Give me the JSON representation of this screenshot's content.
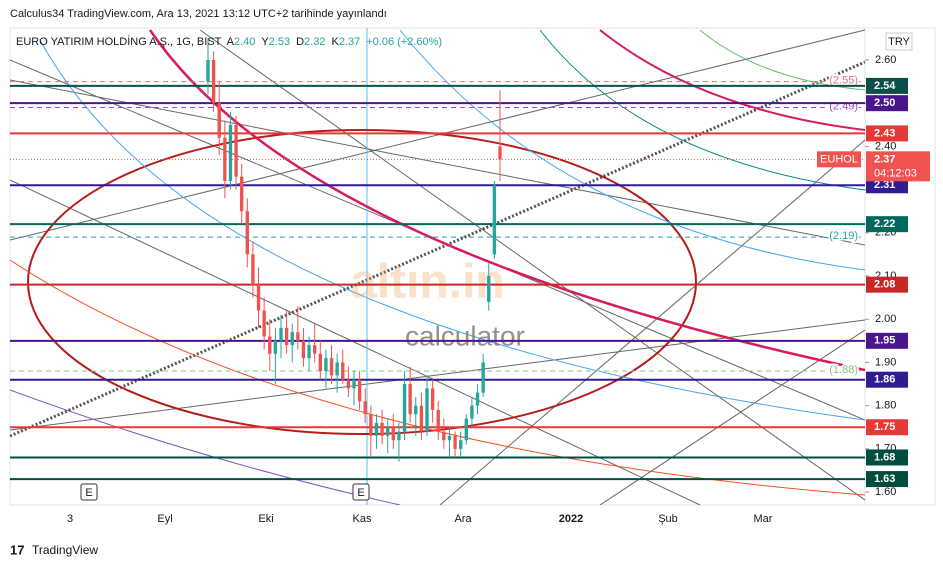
{
  "header": {
    "publisher": "Calculus34 TradingView.com, Ara 13, 2021 13:12 UTC+2 tarihinde yayınlandı",
    "footer": "TradingView"
  },
  "chart_data": {
    "type": "candlestick",
    "title": "EURO YATIRIM HOLDİNG A.Ş., 1G, BIST",
    "ohlc_text": [
      "A",
      "2.40",
      "Y",
      "2.53",
      "D",
      "2.32",
      "K",
      "2.37",
      "+0.06 (+2.60%)"
    ],
    "currency": "TRY",
    "time_labels": [
      "3",
      "Eyl",
      "Eki",
      "Kas",
      "Ara",
      "2022",
      "Şub",
      "Mar"
    ],
    "events": [
      "E",
      "E"
    ],
    "watermark": [
      "altın.in",
      "calculator"
    ],
    "open": [
      2.55,
      2.6,
      2.5,
      2.42,
      2.32,
      2.45,
      2.33,
      2.25,
      2.15,
      2.08,
      2.02,
      1.96,
      1.92,
      1.95,
      1.98,
      1.94,
      1.97,
      1.95,
      1.91,
      1.94,
      1.92,
      1.88,
      1.91,
      1.87,
      1.9,
      1.86,
      1.84,
      1.86,
      1.81,
      1.78,
      1.73,
      1.76,
      1.73,
      1.75,
      1.72,
      1.74,
      1.85,
      1.78,
      1.8,
      1.74,
      1.84,
      1.79,
      1.74,
      1.72,
      1.73,
      1.7,
      1.72,
      1.77,
      1.8,
      1.83,
      2.04,
      2.15,
      2.4
    ],
    "high": [
      2.65,
      2.62,
      2.55,
      2.46,
      2.48,
      2.47,
      2.36,
      2.28,
      2.18,
      2.12,
      2.05,
      2.0,
      1.98,
      2.01,
      2.02,
      1.99,
      2.03,
      1.98,
      1.96,
      1.99,
      1.95,
      1.93,
      1.94,
      1.92,
      1.93,
      1.89,
      1.88,
      1.88,
      1.84,
      1.8,
      1.78,
      1.79,
      1.77,
      1.78,
      1.76,
      1.88,
      1.89,
      1.82,
      1.83,
      1.87,
      1.86,
      1.81,
      1.77,
      1.75,
      1.74,
      1.74,
      1.78,
      1.82,
      1.85,
      1.92,
      2.13,
      2.32,
      2.53
    ],
    "low": [
      2.52,
      2.48,
      2.38,
      2.28,
      2.3,
      2.3,
      2.22,
      2.12,
      2.05,
      1.98,
      1.93,
      1.88,
      1.85,
      1.91,
      1.92,
      1.9,
      1.93,
      1.89,
      1.88,
      1.9,
      1.86,
      1.84,
      1.85,
      1.83,
      1.85,
      1.82,
      1.8,
      1.79,
      1.76,
      1.68,
      1.7,
      1.71,
      1.69,
      1.7,
      1.67,
      1.72,
      1.76,
      1.73,
      1.72,
      1.73,
      1.76,
      1.72,
      1.7,
      1.68,
      1.68,
      1.68,
      1.71,
      1.75,
      1.78,
      1.82,
      2.02,
      2.14,
      2.32
    ],
    "close": [
      2.6,
      2.5,
      2.42,
      2.32,
      2.45,
      2.33,
      2.25,
      2.15,
      2.08,
      2.02,
      1.96,
      1.92,
      1.95,
      1.98,
      1.94,
      1.97,
      1.95,
      1.91,
      1.94,
      1.92,
      1.88,
      1.91,
      1.87,
      1.9,
      1.86,
      1.84,
      1.86,
      1.81,
      1.78,
      1.73,
      1.76,
      1.73,
      1.75,
      1.72,
      1.74,
      1.85,
      1.78,
      1.8,
      1.74,
      1.84,
      1.79,
      1.74,
      1.72,
      1.73,
      1.7,
      1.72,
      1.77,
      1.8,
      1.83,
      1.9,
      2.1,
      2.31,
      2.37
    ],
    "up_color": "#26a69a",
    "down_color": "#ef5350",
    "ylim": [
      1.57,
      2.674
    ],
    "yticks": [
      {
        "value": 1.6,
        "label": "1.60"
      },
      {
        "value": 1.7,
        "label": "1.70"
      },
      {
        "value": 1.8,
        "label": "1.80"
      },
      {
        "value": 1.9,
        "label": "1.90"
      },
      {
        "value": 2.0,
        "label": "2.00"
      },
      {
        "value": 2.1,
        "label": "2.10"
      },
      {
        "value": 2.2,
        "label": "2.20"
      },
      {
        "value": 2.3,
        "label": "2.30"
      },
      {
        "value": 2.4,
        "label": "2.40"
      },
      {
        "value": 2.5,
        "label": "2.50"
      },
      {
        "value": 2.6,
        "label": "2.60"
      }
    ],
    "levels": [
      {
        "value": 2.54,
        "label": "2.54",
        "color": "#0b4f4c"
      },
      {
        "value": 2.5,
        "label": "2.50",
        "color": "#4a148c"
      },
      {
        "value": 2.43,
        "label": "2.43",
        "color": "#e53935"
      },
      {
        "value": 2.31,
        "label": "2.31",
        "color": "#311b92"
      },
      {
        "value": 2.22,
        "label": "2.22",
        "color": "#00695c"
      },
      {
        "value": 2.08,
        "label": "2.08",
        "color": "#c62828"
      },
      {
        "value": 1.95,
        "label": "1.95",
        "color": "#4a148c"
      },
      {
        "value": 1.86,
        "label": "1.86",
        "color": "#311b92"
      },
      {
        "value": 1.75,
        "label": "1.75",
        "color": "#e53935"
      },
      {
        "value": 1.68,
        "label": "1.68",
        "color": "#004d40"
      },
      {
        "value": 1.63,
        "label": "1.63",
        "color": "#004d40"
      }
    ],
    "dashed_levels": [
      {
        "value": 2.55,
        "label": "(2.55)",
        "color": "#e57373"
      },
      {
        "value": 2.49,
        "label": "(2.49)",
        "color": "#ab47bc"
      },
      {
        "value": 2.19,
        "label": "(2.19)",
        "color": "#26a69a"
      },
      {
        "value": 1.88,
        "label": "(1.88)",
        "color": "#81c784"
      }
    ],
    "last_price": {
      "name": "EUHOL",
      "value": 2.37,
      "label": "2.37",
      "countdown": "04:12:03",
      "color": "#ef5350"
    }
  }
}
